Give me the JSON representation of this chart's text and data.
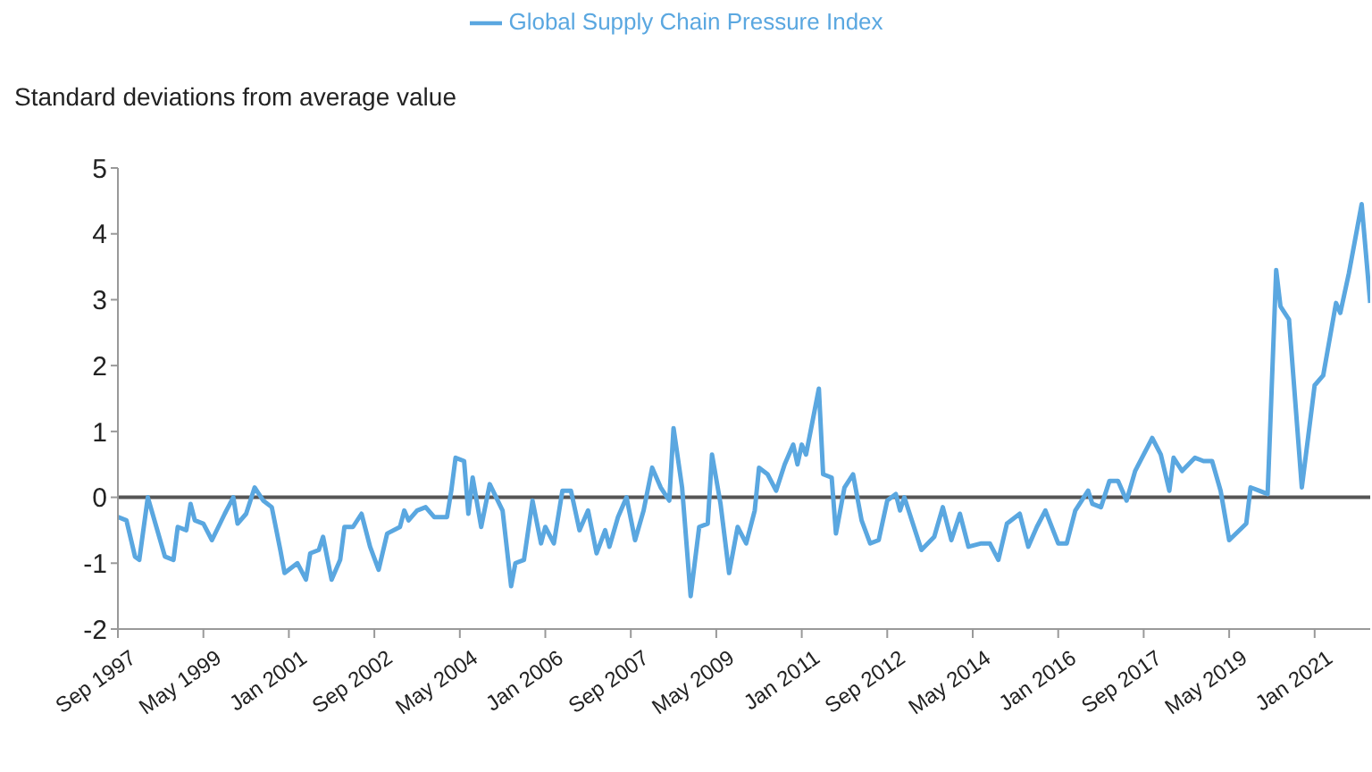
{
  "chart_data": {
    "type": "line",
    "ylabel": "Standard deviations from average value",
    "x": [
      "1997-09",
      "1997-11",
      "1998-01",
      "1998-02",
      "1998-04",
      "1998-06",
      "1998-08",
      "1998-10",
      "1998-11",
      "1999-01",
      "1999-02",
      "1999-03",
      "1999-05",
      "1999-07",
      "1999-10",
      "1999-12",
      "2000-01",
      "2000-03",
      "2000-05",
      "2000-07",
      "2000-09",
      "2000-11",
      "2000-12",
      "2001-03",
      "2001-05",
      "2001-06",
      "2001-08",
      "2001-09",
      "2001-11",
      "2002-01",
      "2002-02",
      "2002-04",
      "2002-06",
      "2002-08",
      "2002-10",
      "2002-12",
      "2003-03",
      "2003-04",
      "2003-05",
      "2003-07",
      "2003-09",
      "2003-11",
      "2004-02",
      "2004-03",
      "2004-04",
      "2004-06",
      "2004-07",
      "2004-08",
      "2004-10",
      "2004-12",
      "2005-03",
      "2005-05",
      "2005-06",
      "2005-08",
      "2005-10",
      "2005-12",
      "2006-01",
      "2006-03",
      "2006-05",
      "2006-07",
      "2006-09",
      "2006-11",
      "2007-01",
      "2007-03",
      "2007-04",
      "2007-06",
      "2007-08",
      "2007-10",
      "2007-12",
      "2008-02",
      "2008-04",
      "2008-06",
      "2008-07",
      "2008-09",
      "2008-11",
      "2009-01",
      "2009-03",
      "2009-04",
      "2009-06",
      "2009-08",
      "2009-10",
      "2009-12",
      "2010-02",
      "2010-03",
      "2010-05",
      "2010-07",
      "2010-09",
      "2010-11",
      "2010-12",
      "2011-01",
      "2011-02",
      "2011-05",
      "2011-06",
      "2011-08",
      "2011-09",
      "2011-11",
      "2012-01",
      "2012-03",
      "2012-05",
      "2012-07",
      "2012-09",
      "2012-11",
      "2012-12",
      "2013-01",
      "2013-05",
      "2013-08",
      "2013-10",
      "2013-12",
      "2014-02",
      "2014-04",
      "2014-07",
      "2014-09",
      "2014-11",
      "2015-01",
      "2015-04",
      "2015-06",
      "2015-08",
      "2015-10",
      "2016-01",
      "2016-03",
      "2016-05",
      "2016-08",
      "2016-09",
      "2016-11",
      "2017-01",
      "2017-03",
      "2017-05",
      "2017-07",
      "2017-11",
      "2018-01",
      "2018-03",
      "2018-04",
      "2018-06",
      "2018-09",
      "2018-11",
      "2019-01",
      "2019-03",
      "2019-05",
      "2019-09",
      "2019-10",
      "2019-12",
      "2020-02",
      "2020-04",
      "2020-05",
      "2020-07",
      "2020-10",
      "2021-01",
      "2021-03",
      "2021-06",
      "2021-07",
      "2021-09",
      "2021-12",
      "2022-02"
    ],
    "series": [
      {
        "name": "Global Supply Chain Pressure Index",
        "color": "#5aa7e0",
        "values": [
          -0.3,
          -0.35,
          -0.9,
          -0.95,
          0.0,
          -0.45,
          -0.9,
          -0.95,
          -0.45,
          -0.5,
          -0.1,
          -0.35,
          -0.4,
          -0.65,
          -0.25,
          0.0,
          -0.4,
          -0.25,
          0.15,
          -0.05,
          -0.15,
          -0.8,
          -1.15,
          -1.0,
          -1.25,
          -0.85,
          -0.8,
          -0.6,
          -1.25,
          -0.95,
          -0.45,
          -0.45,
          -0.25,
          -0.75,
          -1.1,
          -0.55,
          -0.45,
          -0.2,
          -0.35,
          -0.2,
          -0.15,
          -0.3,
          -0.3,
          0.1,
          0.6,
          0.55,
          -0.25,
          0.3,
          -0.45,
          0.2,
          -0.2,
          -1.35,
          -1.0,
          -0.95,
          -0.05,
          -0.7,
          -0.45,
          -0.7,
          0.1,
          0.1,
          -0.5,
          -0.2,
          -0.85,
          -0.5,
          -0.75,
          -0.3,
          0.0,
          -0.65,
          -0.2,
          0.45,
          0.15,
          -0.05,
          1.05,
          0.15,
          -1.5,
          -0.45,
          -0.4,
          0.65,
          -0.1,
          -1.15,
          -0.45,
          -0.7,
          -0.2,
          0.45,
          0.35,
          0.1,
          0.5,
          0.8,
          0.5,
          0.8,
          0.65,
          1.65,
          0.35,
          0.3,
          -0.55,
          0.15,
          0.35,
          -0.35,
          -0.7,
          -0.65,
          -0.05,
          0.05,
          -0.2,
          0.0,
          -0.8,
          -0.6,
          -0.15,
          -0.65,
          -0.25,
          -0.75,
          -0.7,
          -0.7,
          -0.95,
          -0.4,
          -0.25,
          -0.75,
          -0.45,
          -0.2,
          -0.7,
          -0.7,
          -0.2,
          0.1,
          -0.1,
          -0.15,
          0.25,
          0.25,
          -0.05,
          0.4,
          0.9,
          0.65,
          0.1,
          0.6,
          0.4,
          0.6,
          0.55,
          0.55,
          0.1,
          -0.65,
          -0.4,
          0.15,
          0.1,
          0.05,
          3.45,
          2.9,
          2.7,
          0.15,
          1.7,
          1.85,
          2.95,
          2.8,
          3.4,
          4.45,
          2.95
        ]
      }
    ],
    "xlim": [
      "1997-09",
      "2022-02"
    ],
    "xticks": [
      {
        "value": "1997-09",
        "label": "Sep 1997"
      },
      {
        "value": "1999-05",
        "label": "May 1999"
      },
      {
        "value": "2001-01",
        "label": "Jan 2001"
      },
      {
        "value": "2002-09",
        "label": "Sep 2002"
      },
      {
        "value": "2004-05",
        "label": "May 2004"
      },
      {
        "value": "2006-01",
        "label": "Jan 2006"
      },
      {
        "value": "2007-09",
        "label": "Sep 2007"
      },
      {
        "value": "2009-05",
        "label": "May 2009"
      },
      {
        "value": "2011-01",
        "label": "Jan 2011"
      },
      {
        "value": "2012-09",
        "label": "Sep 2012"
      },
      {
        "value": "2014-05",
        "label": "May 2014"
      },
      {
        "value": "2016-01",
        "label": "Jan 2016"
      },
      {
        "value": "2017-09",
        "label": "Sep 2017"
      },
      {
        "value": "2019-05",
        "label": "May 2019"
      },
      {
        "value": "2021-01",
        "label": "Jan 2021"
      }
    ],
    "ylim": [
      -2,
      5
    ],
    "yticks": [
      -2,
      -1,
      0,
      1,
      2,
      3,
      4,
      5
    ],
    "ref_lines": [
      {
        "axis": "y",
        "value": 0,
        "color": "#555555"
      }
    ],
    "grid": false,
    "legend": "top"
  }
}
